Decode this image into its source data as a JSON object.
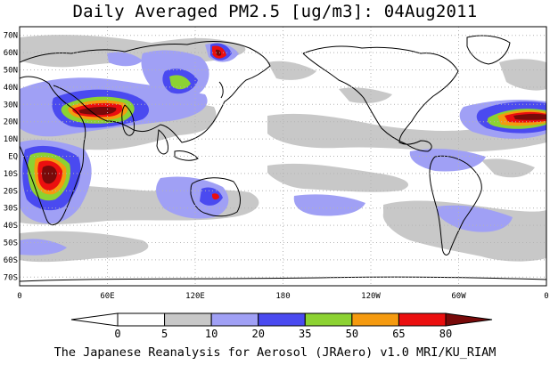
{
  "title": "Daily Averaged PM2.5 [ug/m3]: 04Aug2011",
  "footer": "The Japanese Reanalysis for Aerosol (JRAero) v1.0 MRI/KU_RIAM",
  "lat_axis_labels": [
    "70N",
    "60N",
    "50N",
    "40N",
    "30N",
    "20N",
    "10N",
    "EQ",
    "10S",
    "20S",
    "30S",
    "40S",
    "50S",
    "60S",
    "70S"
  ],
  "lon_axis_labels": [
    "0",
    "60E",
    "120E",
    "180",
    "120W",
    "60W",
    "0"
  ],
  "colorbar": {
    "tick_labels": [
      "0",
      "5",
      "10",
      "20",
      "35",
      "50",
      "65",
      "80"
    ],
    "bins": [
      {
        "range": "<0",
        "color": "#ffffff"
      },
      {
        "range": "0-5",
        "color": "#ffffff"
      },
      {
        "range": "5-10",
        "color": "#c8c8c8"
      },
      {
        "range": "10-20",
        "color": "#a0a0f5"
      },
      {
        "range": "20-35",
        "color": "#4a4af0"
      },
      {
        "range": "35-50",
        "color": "#8cd232"
      },
      {
        "range": "50-65",
        "color": "#f59a0f"
      },
      {
        "range": "65-80",
        "color": "#eb0f0f"
      },
      {
        "range": ">80",
        "color": "#780a0a"
      }
    ]
  },
  "map": {
    "projection": "equirectangular",
    "lon_range": [
      0,
      360
    ],
    "lat_range": [
      -75,
      75
    ],
    "gridlines": "dotted"
  },
  "colors": {
    "coastline": "#000000",
    "grid": "#b4b4b4",
    "background": "#ffffff"
  }
}
